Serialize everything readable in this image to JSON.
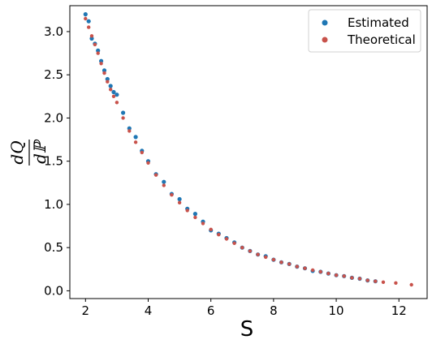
{
  "chart_data": {
    "type": "scatter",
    "xlabel": "S",
    "ylabel": {
      "numerator": "dQ",
      "denominator": "dℙ"
    },
    "xlim": [
      1.5,
      12.9
    ],
    "ylim": [
      -0.09,
      3.3
    ],
    "xticks": [
      "2",
      "4",
      "6",
      "8",
      "10",
      "12"
    ],
    "xtick_values": [
      2,
      4,
      6,
      8,
      10,
      12
    ],
    "yticks": [
      "0.0",
      "0.5",
      "1.0",
      "1.5",
      "2.0",
      "2.5",
      "3.0"
    ],
    "ytick_values": [
      0,
      0.5,
      1.0,
      1.5,
      2.0,
      2.5,
      3.0
    ],
    "grid": false,
    "legend_position": "top-right",
    "series": [
      {
        "name": "Estimated",
        "color": "#1f77b4",
        "x": [
          2.0,
          2.1,
          2.2,
          2.3,
          2.4,
          2.5,
          2.6,
          2.7,
          2.8,
          2.9,
          3.0,
          3.2,
          3.4,
          3.6,
          3.8,
          4.0,
          4.25,
          4.5,
          4.75,
          5.0,
          5.25,
          5.5,
          5.75,
          6.0,
          6.25,
          6.5,
          6.75,
          7.0,
          7.25,
          7.5,
          7.75,
          8.0,
          8.25,
          8.5,
          8.75,
          9.0,
          9.25,
          9.5,
          9.75,
          10.0,
          10.25,
          10.5,
          10.75,
          11.0,
          11.25
        ],
        "y": [
          3.2,
          3.12,
          2.92,
          2.86,
          2.78,
          2.66,
          2.55,
          2.45,
          2.37,
          2.3,
          2.27,
          2.06,
          1.88,
          1.78,
          1.62,
          1.5,
          1.35,
          1.26,
          1.12,
          1.06,
          0.95,
          0.89,
          0.8,
          0.7,
          0.66,
          0.61,
          0.56,
          0.5,
          0.46,
          0.42,
          0.4,
          0.36,
          0.33,
          0.31,
          0.28,
          0.26,
          0.23,
          0.22,
          0.2,
          0.18,
          0.17,
          0.15,
          0.14,
          0.12,
          0.11
        ]
      },
      {
        "name": "Theoretical",
        "color": "#c8524b",
        "x": [
          2.0,
          2.1,
          2.2,
          2.3,
          2.4,
          2.5,
          2.6,
          2.7,
          2.8,
          2.9,
          3.0,
          3.2,
          3.4,
          3.6,
          3.8,
          4.0,
          4.25,
          4.5,
          4.75,
          5.0,
          5.25,
          5.5,
          5.75,
          6.0,
          6.25,
          6.5,
          6.75,
          7.0,
          7.25,
          7.5,
          7.75,
          8.0,
          8.25,
          8.5,
          8.75,
          9.0,
          9.25,
          9.5,
          9.75,
          10.0,
          10.25,
          10.5,
          10.75,
          11.0,
          11.25,
          11.5,
          11.9,
          12.4
        ],
        "y": [
          3.15,
          3.05,
          2.95,
          2.85,
          2.75,
          2.63,
          2.52,
          2.42,
          2.33,
          2.25,
          2.18,
          2.0,
          1.85,
          1.72,
          1.6,
          1.48,
          1.34,
          1.22,
          1.11,
          1.02,
          0.93,
          0.85,
          0.78,
          0.71,
          0.65,
          0.6,
          0.55,
          0.5,
          0.46,
          0.42,
          0.39,
          0.36,
          0.33,
          0.31,
          0.28,
          0.26,
          0.24,
          0.22,
          0.2,
          0.18,
          0.17,
          0.15,
          0.14,
          0.12,
          0.11,
          0.1,
          0.09,
          0.07
        ]
      }
    ]
  }
}
